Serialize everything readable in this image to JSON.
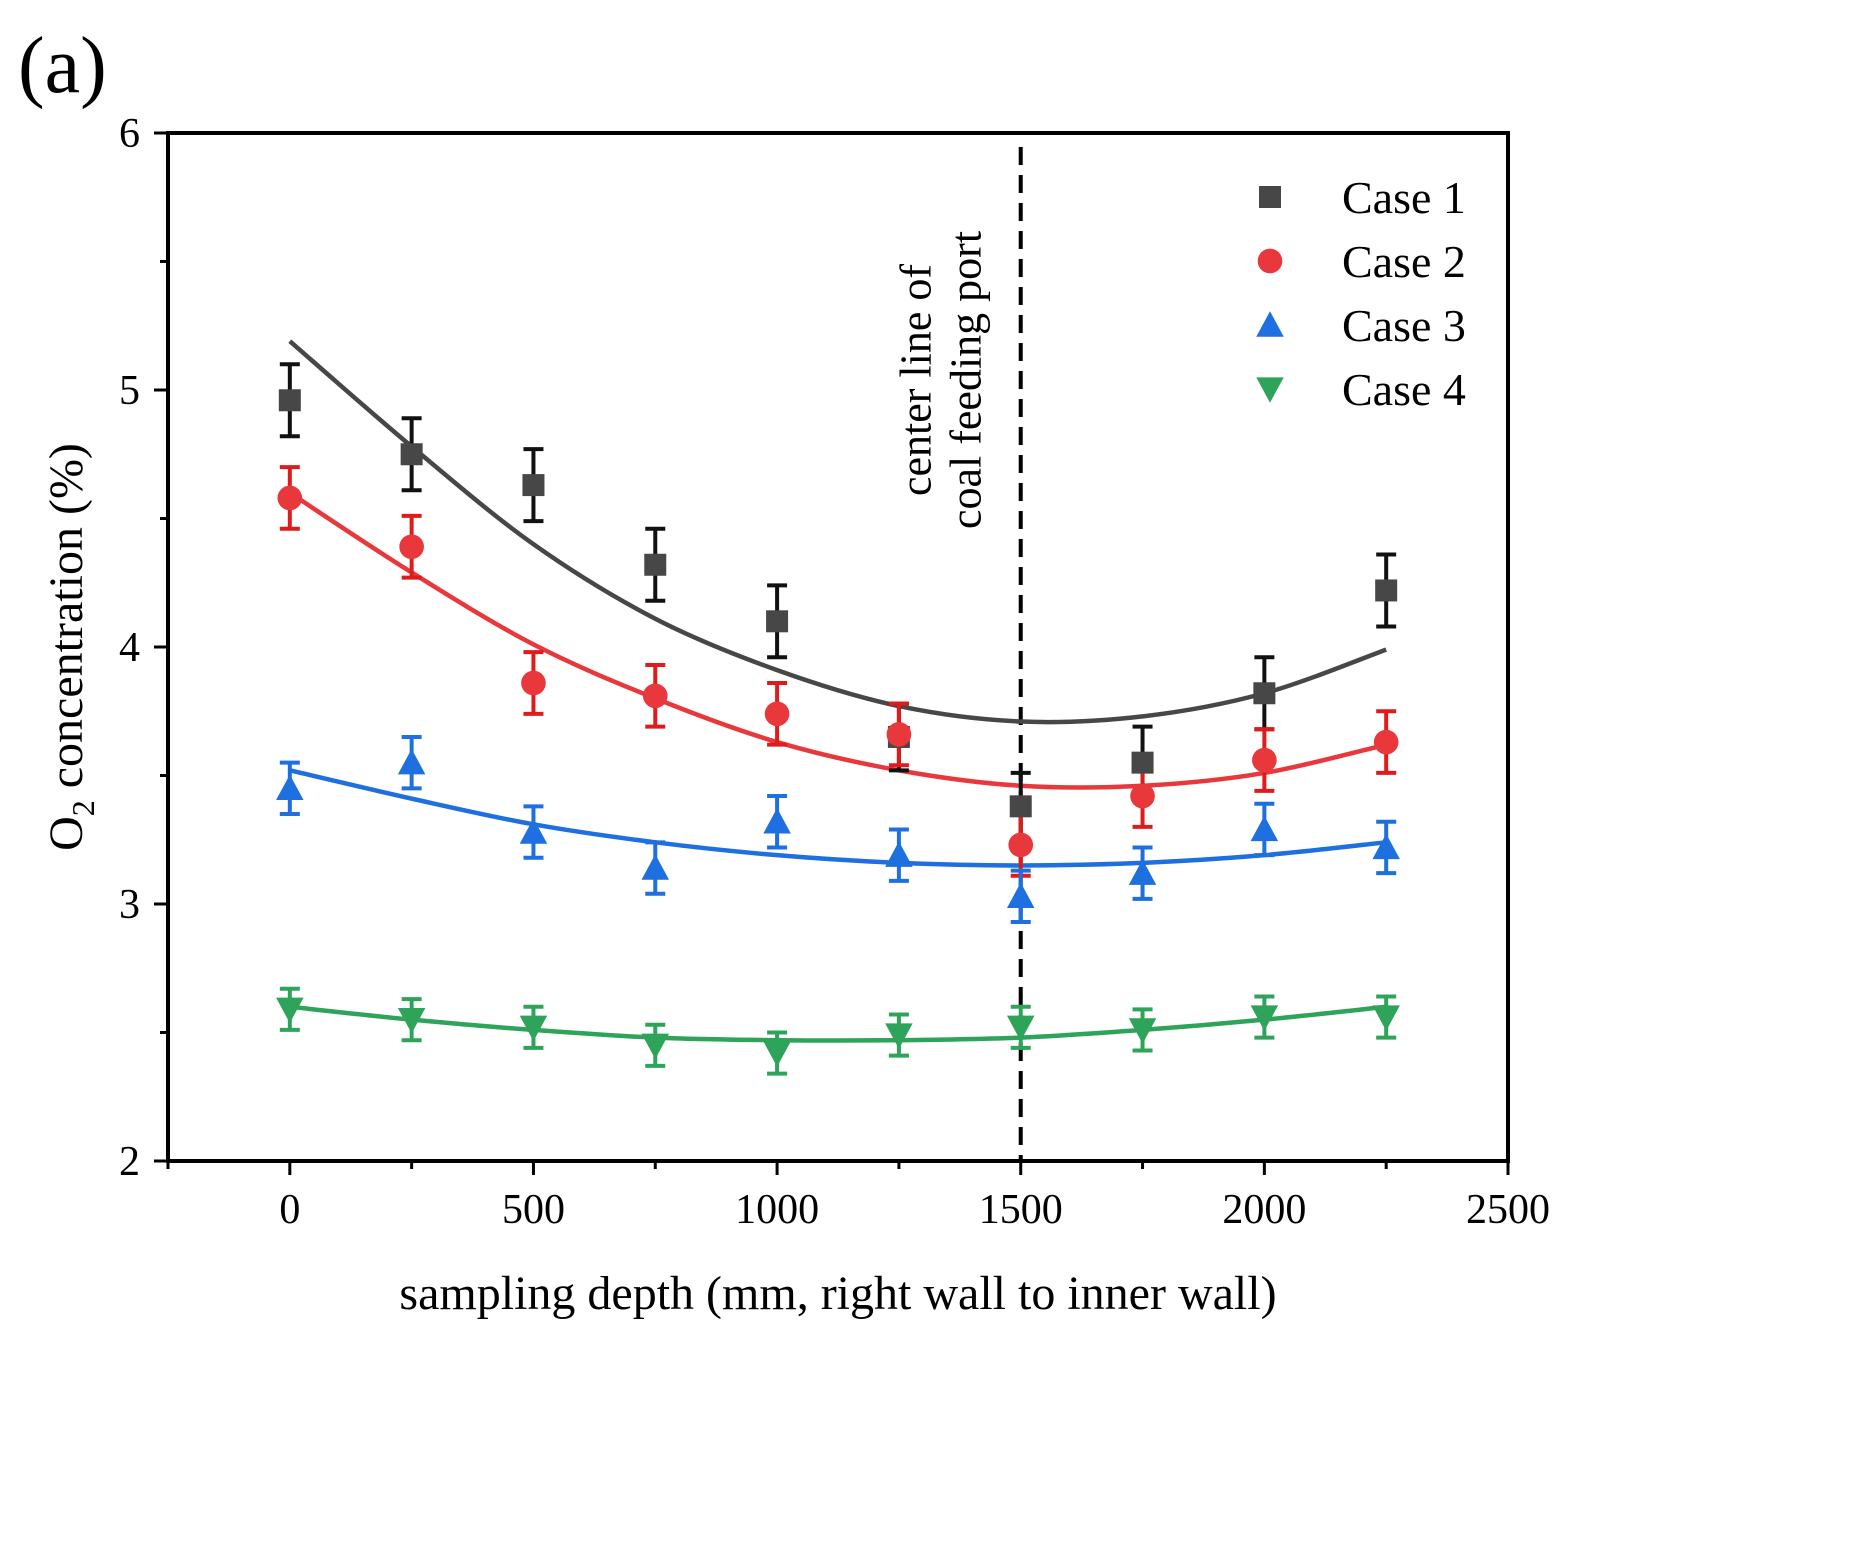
{
  "panel_label": "(a)",
  "chart_data": {
    "type": "scatter",
    "xlabel": "sampling depth (mm, right wall to inner wall)",
    "ylabel_prefix": "O",
    "ylabel_sub": "2",
    "ylabel_suffix": " concentration (%)",
    "xlim": [
      -250,
      2500
    ],
    "ylim": [
      2,
      6
    ],
    "xticks": [
      0,
      500,
      1000,
      1500,
      2000,
      2500
    ],
    "yticks": [
      2,
      3,
      4,
      5,
      6
    ],
    "xtick_labels": [
      "0",
      "500",
      "1000",
      "1500",
      "2000",
      "2500"
    ],
    "ytick_labels": [
      "2",
      "3",
      "4",
      "5",
      "6"
    ],
    "x": [
      0,
      250,
      500,
      750,
      1000,
      1250,
      1500,
      1750,
      2000,
      2250
    ],
    "vline": {
      "x": 1500,
      "label_line1": "center line of",
      "label_line2": "coal feeding port"
    },
    "legend_position": "top-right",
    "series": [
      {
        "name": "Case 1",
        "marker": "square",
        "color": "#474747",
        "error_color": "#111111",
        "points": [
          4.96,
          4.75,
          4.63,
          4.32,
          4.1,
          3.65,
          3.38,
          3.55,
          3.82,
          4.22
        ],
        "errors": [
          0.14,
          0.14,
          0.14,
          0.14,
          0.14,
          0.13,
          0.13,
          0.14,
          0.14,
          0.14
        ],
        "fit": [
          5.19,
          4.78,
          4.4,
          4.11,
          3.91,
          3.77,
          3.71,
          3.73,
          3.82,
          3.99
        ]
      },
      {
        "name": "Case 2",
        "marker": "circle",
        "color": "#e8383b",
        "error_color": "#e01b1b",
        "points": [
          4.58,
          4.39,
          3.86,
          3.81,
          3.74,
          3.66,
          3.23,
          3.42,
          3.56,
          3.63
        ],
        "errors": [
          0.12,
          0.12,
          0.12,
          0.12,
          0.12,
          0.12,
          0.12,
          0.12,
          0.12,
          0.12
        ],
        "fit": [
          4.6,
          4.29,
          4.01,
          3.8,
          3.63,
          3.52,
          3.46,
          3.46,
          3.51,
          3.62
        ]
      },
      {
        "name": "Case 3",
        "marker": "triangle-up",
        "color": "#1e6fe0",
        "error_color": "#1e6fe0",
        "points": [
          3.45,
          3.55,
          3.28,
          3.14,
          3.32,
          3.19,
          3.03,
          3.12,
          3.29,
          3.22
        ],
        "errors": [
          0.1,
          0.1,
          0.1,
          0.1,
          0.1,
          0.1,
          0.1,
          0.1,
          0.1,
          0.1
        ],
        "fit": [
          3.52,
          3.41,
          3.31,
          3.24,
          3.19,
          3.16,
          3.15,
          3.16,
          3.19,
          3.24
        ]
      },
      {
        "name": "Case 4",
        "marker": "triangle-down",
        "color": "#2ea35a",
        "error_color": "#2ea35a",
        "points": [
          2.59,
          2.55,
          2.52,
          2.45,
          2.42,
          2.49,
          2.52,
          2.51,
          2.56,
          2.56
        ],
        "errors": [
          0.08,
          0.08,
          0.08,
          0.08,
          0.08,
          0.08,
          0.08,
          0.08,
          0.08,
          0.08
        ],
        "fit": [
          2.6,
          2.55,
          2.51,
          2.48,
          2.47,
          2.47,
          2.48,
          2.51,
          2.55,
          2.6
        ]
      }
    ]
  }
}
